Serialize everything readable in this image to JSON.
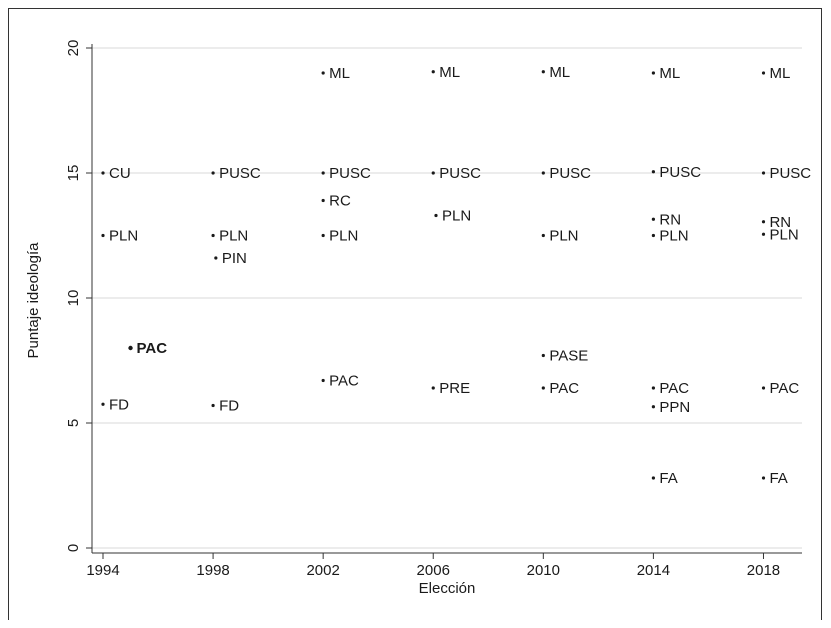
{
  "chart_data": {
    "type": "scatter",
    "xlabel": "Elección",
    "ylabel": "Puntaje ideología",
    "xlim": [
      1993.6,
      2019.4
    ],
    "ylim": [
      -0.2,
      20
    ],
    "xticks": [
      1994,
      1998,
      2002,
      2006,
      2010,
      2014,
      2018
    ],
    "yticks": [
      0,
      5,
      10,
      15,
      20
    ],
    "grid": true,
    "points": [
      {
        "x": 1994,
        "y": 15.0,
        "label": "CU"
      },
      {
        "x": 1994,
        "y": 12.5,
        "label": "PLN"
      },
      {
        "x": 1995,
        "y": 8.0,
        "label": "PAC",
        "bold": true
      },
      {
        "x": 1994,
        "y": 5.75,
        "label": "FD"
      },
      {
        "x": 1998,
        "y": 15.0,
        "label": "PUSC"
      },
      {
        "x": 1998,
        "y": 12.5,
        "label": "PLN"
      },
      {
        "x": 1998.1,
        "y": 11.6,
        "label": "PIN"
      },
      {
        "x": 1998,
        "y": 5.7,
        "label": "FD"
      },
      {
        "x": 2002,
        "y": 19.0,
        "label": "ML"
      },
      {
        "x": 2002,
        "y": 15.0,
        "label": "PUSC"
      },
      {
        "x": 2002,
        "y": 13.9,
        "label": "RC"
      },
      {
        "x": 2002,
        "y": 12.5,
        "label": "PLN"
      },
      {
        "x": 2002,
        "y": 6.7,
        "label": "PAC"
      },
      {
        "x": 2006,
        "y": 19.05,
        "label": "ML"
      },
      {
        "x": 2006,
        "y": 15.0,
        "label": "PUSC"
      },
      {
        "x": 2006.1,
        "y": 13.3,
        "label": "PLN"
      },
      {
        "x": 2006,
        "y": 6.4,
        "label": "PRE"
      },
      {
        "x": 2010,
        "y": 19.05,
        "label": "ML"
      },
      {
        "x": 2010,
        "y": 15.0,
        "label": "PUSC"
      },
      {
        "x": 2010,
        "y": 12.5,
        "label": "PLN"
      },
      {
        "x": 2010,
        "y": 7.7,
        "label": "PASE"
      },
      {
        "x": 2010,
        "y": 6.4,
        "label": "PAC"
      },
      {
        "x": 2014,
        "y": 19.0,
        "label": "ML"
      },
      {
        "x": 2014,
        "y": 15.05,
        "label": "PUSC"
      },
      {
        "x": 2014,
        "y": 13.15,
        "label": "RN"
      },
      {
        "x": 2014,
        "y": 12.5,
        "label": "PLN"
      },
      {
        "x": 2014,
        "y": 6.4,
        "label": "PAC"
      },
      {
        "x": 2014,
        "y": 5.65,
        "label": "PPN"
      },
      {
        "x": 2014,
        "y": 2.8,
        "label": "FA"
      },
      {
        "x": 2018,
        "y": 19.0,
        "label": "ML"
      },
      {
        "x": 2018,
        "y": 15.0,
        "label": "PUSC"
      },
      {
        "x": 2018,
        "y": 13.05,
        "label": "RN"
      },
      {
        "x": 2018,
        "y": 12.55,
        "label": "PLN"
      },
      {
        "x": 2018,
        "y": 6.4,
        "label": "PAC"
      },
      {
        "x": 2018,
        "y": 2.8,
        "label": "FA"
      }
    ]
  }
}
